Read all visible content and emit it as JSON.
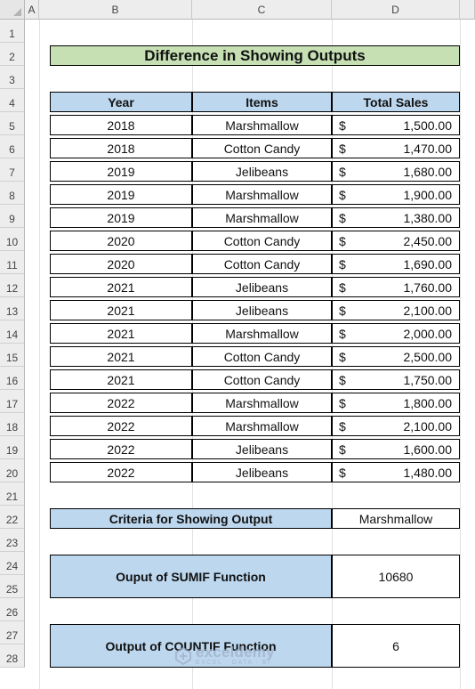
{
  "columns": [
    "A",
    "B",
    "C",
    "D"
  ],
  "rows": [
    "1",
    "2",
    "3",
    "4",
    "5",
    "6",
    "7",
    "8",
    "9",
    "10",
    "11",
    "12",
    "13",
    "14",
    "15",
    "16",
    "17",
    "18",
    "19",
    "20",
    "21",
    "22",
    "23",
    "24",
    "25",
    "26",
    "27",
    "28"
  ],
  "title": "Difference in Showing Outputs",
  "table": {
    "headers": [
      "Year",
      "Items",
      "Total Sales"
    ],
    "currency_symbol": "$",
    "rows": [
      {
        "year": "2018",
        "item": "Marshmallow",
        "sales": "1,500.00"
      },
      {
        "year": "2018",
        "item": "Cotton Candy",
        "sales": "1,470.00"
      },
      {
        "year": "2019",
        "item": "Jelibeans",
        "sales": "1,680.00"
      },
      {
        "year": "2019",
        "item": "Marshmallow",
        "sales": "1,900.00"
      },
      {
        "year": "2019",
        "item": "Marshmallow",
        "sales": "1,380.00"
      },
      {
        "year": "2020",
        "item": "Cotton Candy",
        "sales": "2,450.00"
      },
      {
        "year": "2020",
        "item": "Cotton Candy",
        "sales": "1,690.00"
      },
      {
        "year": "2021",
        "item": "Jelibeans",
        "sales": "1,760.00"
      },
      {
        "year": "2021",
        "item": "Jelibeans",
        "sales": "2,100.00"
      },
      {
        "year": "2021",
        "item": "Marshmallow",
        "sales": "2,000.00"
      },
      {
        "year": "2021",
        "item": "Cotton Candy",
        "sales": "2,500.00"
      },
      {
        "year": "2021",
        "item": "Cotton Candy",
        "sales": "1,750.00"
      },
      {
        "year": "2022",
        "item": "Marshmallow",
        "sales": "1,800.00"
      },
      {
        "year": "2022",
        "item": "Marshmallow",
        "sales": "2,100.00"
      },
      {
        "year": "2022",
        "item": "Jelibeans",
        "sales": "1,600.00"
      },
      {
        "year": "2022",
        "item": "Jelibeans",
        "sales": "1,480.00"
      }
    ]
  },
  "criteria": {
    "label": "Criteria for Showing Output",
    "value": "Marshmallow"
  },
  "sumif": {
    "label": "Ouput of SUMIF Function",
    "value": "10680"
  },
  "countif": {
    "label": "Output of COUNTIF Function",
    "value": "6"
  },
  "watermark": {
    "name": "exceldemy",
    "tagline": "EXCEL · DATA · BI"
  },
  "colors": {
    "title_fill": "#c6e0b4",
    "header_fill": "#bdd7ee",
    "header_gray": "#ededed",
    "gridline": "#e1e1e1"
  }
}
